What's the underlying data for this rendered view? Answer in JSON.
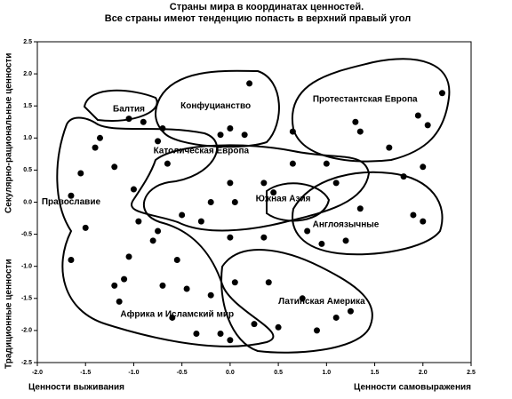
{
  "chart_data": {
    "type": "scatter",
    "title": "Страны мира в координатах ценностей.",
    "subtitle": "Все страны имеют тенденцию попасть в верхний правый угол",
    "x_label_left": "Ценности выживания",
    "x_label_right": "Ценности самовыражения",
    "y_label_bottom": "Традиционные ценности",
    "y_label_top": "Секулярно-рациональные ценности",
    "color": "#000000",
    "xlim": [
      -2.0,
      2.5
    ],
    "ylim": [
      -2.5,
      2.5
    ],
    "xticks": [
      {
        "value": -2.0,
        "label": "-2.0"
      },
      -1.5,
      {
        "value": -1.0,
        "label": "-1.0"
      },
      -0.5,
      {
        "value": 0.0,
        "label": "0.0"
      },
      0.5,
      {
        "value": 1.0,
        "label": "1.0"
      },
      1.5,
      {
        "value": 2.0,
        "label": "2.0"
      },
      2.5
    ],
    "yticks": [
      2.5,
      {
        "value": 2.0,
        "label": "2.0"
      },
      1.5,
      {
        "value": 1.0,
        "label": "1.0"
      },
      0.5,
      {
        "value": 0.0,
        "label": "0.0"
      },
      -0.5,
      {
        "value": -1.0,
        "label": "-1.0"
      },
      -1.5,
      {
        "value": -2.0,
        "label": "-2.0"
      },
      -2.5
    ],
    "regions": [
      "Балтия",
      "Конфуцианство",
      "Протестантская Европа",
      "Католическая Европа",
      "Православие",
      "Южная Азия",
      "Англоязычные",
      "Латинская Америка",
      "Африка и Исламский мир"
    ],
    "x": [
      2.2,
      1.95,
      2.05,
      1.3,
      1.35,
      1.65,
      2.0,
      1.8,
      0.2,
      0.0,
      -0.1,
      0.65,
      0.15,
      -0.7,
      -0.75,
      -1.05,
      -0.9,
      -1.35,
      -1.4,
      -1.65,
      -1.55,
      -1.2,
      -1.0,
      -0.95,
      -1.5,
      -1.65,
      -1.05,
      -1.1,
      -1.2,
      -0.75,
      -0.65,
      0.35,
      0.65,
      1.0,
      0.0,
      -0.2,
      0.05,
      0.45,
      -0.5,
      -0.3,
      1.1,
      1.35,
      1.9,
      1.2,
      0.8,
      0.95,
      2.0,
      0.4,
      0.75,
      1.1,
      1.25,
      0.9,
      0.25,
      0.0,
      0.5,
      -1.15,
      -0.7,
      -0.45,
      -0.2,
      0.05,
      -0.6,
      -0.35,
      -0.1,
      -0.55,
      -0.8,
      0.35,
      0.0
    ],
    "values": [
      1.7,
      1.35,
      1.2,
      1.25,
      1.1,
      0.85,
      0.55,
      0.4,
      1.85,
      1.15,
      1.05,
      1.1,
      1.05,
      1.15,
      0.95,
      1.3,
      1.25,
      1.0,
      0.85,
      0.1,
      0.45,
      0.55,
      0.2,
      -0.3,
      -0.4,
      -0.9,
      -0.85,
      -1.2,
      -1.3,
      -0.45,
      0.6,
      0.3,
      0.6,
      0.6,
      0.3,
      0.0,
      0.0,
      0.15,
      -0.2,
      -0.3,
      0.3,
      -0.1,
      -0.2,
      -0.6,
      -0.45,
      -0.65,
      -0.3,
      -1.25,
      -1.5,
      -1.8,
      -1.7,
      -2.0,
      -1.9,
      -2.15,
      -1.95,
      -1.55,
      -1.3,
      -1.35,
      -1.45,
      -1.25,
      -1.8,
      -2.05,
      -2.05,
      -0.9,
      -0.6,
      -0.55,
      -0.55
    ]
  }
}
